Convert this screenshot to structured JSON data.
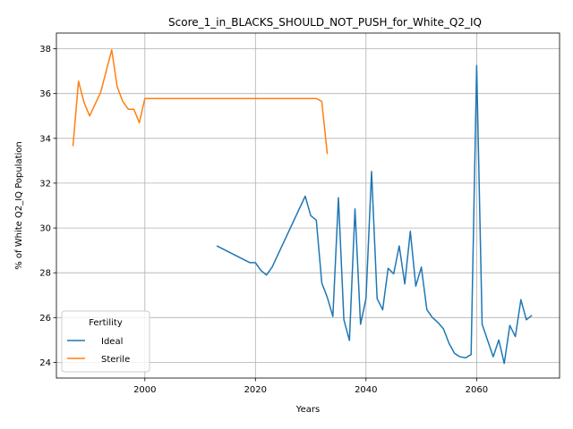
{
  "chart_data": {
    "type": "line",
    "title": "Score_1_in_BLACKS_SHOULD_NOT_PUSH_for_White_Q2_IQ",
    "xlabel": "Years",
    "ylabel": "% of White Q2_IQ Population",
    "xlim": [
      1984,
      2075
    ],
    "ylim": [
      23.3,
      38.7
    ],
    "xticks": [
      2000,
      2020,
      2040,
      2060
    ],
    "xtick_labels": [
      "2000",
      "2020",
      "2040",
      "2060"
    ],
    "yticks": [
      24,
      26,
      28,
      30,
      32,
      34,
      36,
      38
    ],
    "ytick_labels": [
      "24",
      "26",
      "28",
      "30",
      "32",
      "34",
      "36",
      "38"
    ],
    "grid": true,
    "legend": {
      "title": "Fertility",
      "position": "lower-left"
    },
    "series": [
      {
        "name": "Ideal",
        "color": "#1f77b4",
        "points": [
          [
            2013,
            29.2
          ],
          [
            2019,
            28.45
          ],
          [
            2020,
            28.45
          ],
          [
            2021,
            28.1
          ],
          [
            2022,
            27.9
          ],
          [
            2023,
            28.25
          ],
          [
            2029,
            31.42
          ],
          [
            2030,
            30.55
          ],
          [
            2031,
            30.35
          ],
          [
            2032,
            27.55
          ],
          [
            2033,
            26.9
          ],
          [
            2034,
            26.05
          ],
          [
            2035,
            31.35
          ],
          [
            2036,
            25.9
          ],
          [
            2037,
            24.98
          ],
          [
            2038,
            30.85
          ],
          [
            2039,
            25.7
          ],
          [
            2040,
            26.85
          ],
          [
            2041,
            32.52
          ],
          [
            2042,
            26.85
          ],
          [
            2043,
            26.35
          ],
          [
            2044,
            28.2
          ],
          [
            2045,
            27.95
          ],
          [
            2046,
            29.2
          ],
          [
            2047,
            27.5
          ],
          [
            2048,
            29.85
          ],
          [
            2049,
            27.4
          ],
          [
            2050,
            28.25
          ],
          [
            2051,
            26.35
          ],
          [
            2052,
            26.0
          ],
          [
            2053,
            25.78
          ],
          [
            2054,
            25.5
          ],
          [
            2055,
            24.85
          ],
          [
            2056,
            24.4
          ],
          [
            2057,
            24.25
          ],
          [
            2058,
            24.2
          ],
          [
            2059,
            24.35
          ],
          [
            2060,
            37.25
          ],
          [
            2061,
            25.7
          ],
          [
            2063,
            24.25
          ],
          [
            2064,
            25.0
          ],
          [
            2065,
            23.95
          ],
          [
            2066,
            25.65
          ],
          [
            2067,
            25.15
          ],
          [
            2068,
            26.8
          ],
          [
            2069,
            25.9
          ],
          [
            2070,
            26.1
          ]
        ]
      },
      {
        "name": "Sterile",
        "color": "#ff7f0e",
        "points": [
          [
            1987,
            33.65
          ],
          [
            1988,
            36.55
          ],
          [
            1989,
            35.6
          ],
          [
            1990,
            35.0
          ],
          [
            1992,
            36.05
          ],
          [
            1994,
            37.95
          ],
          [
            1995,
            36.3
          ],
          [
            1996,
            35.65
          ],
          [
            1997,
            35.3
          ],
          [
            1998,
            35.3
          ],
          [
            1999,
            34.7
          ],
          [
            2000,
            35.78
          ],
          [
            2031,
            35.78
          ],
          [
            2032,
            35.65
          ],
          [
            2033,
            33.3
          ]
        ]
      }
    ]
  }
}
